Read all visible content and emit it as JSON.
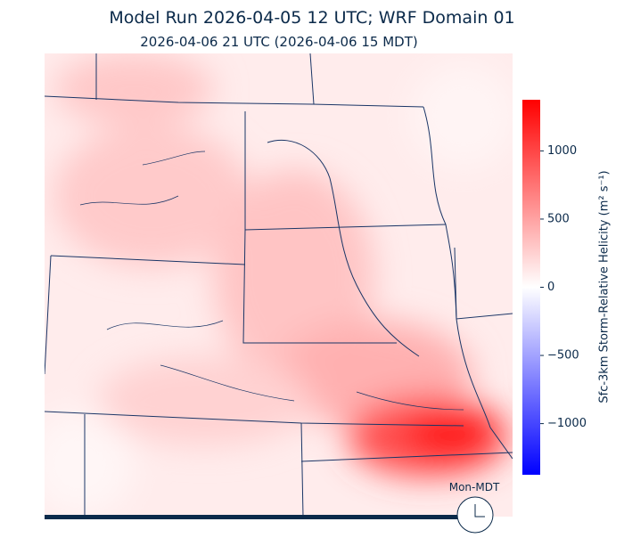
{
  "title": "Model Run 2026-04-05 12 UTC; WRF Domain 01",
  "subtitle": "2026-04-06 21 UTC  (2026-04-06 15 MDT)",
  "colorbar": {
    "label": "Sfc-3km Storm-Relative Helicity (m² s⁻¹)",
    "lim": [
      -1375,
      1375
    ],
    "ticks": [
      {
        "value": -1000,
        "label": "−1000"
      },
      {
        "value": -500,
        "label": "−500"
      },
      0,
      500,
      1000
    ],
    "colors": [
      "#0000ff",
      "#ffffff",
      "#ff0000"
    ]
  },
  "clock_label": "Mon-MDT"
}
